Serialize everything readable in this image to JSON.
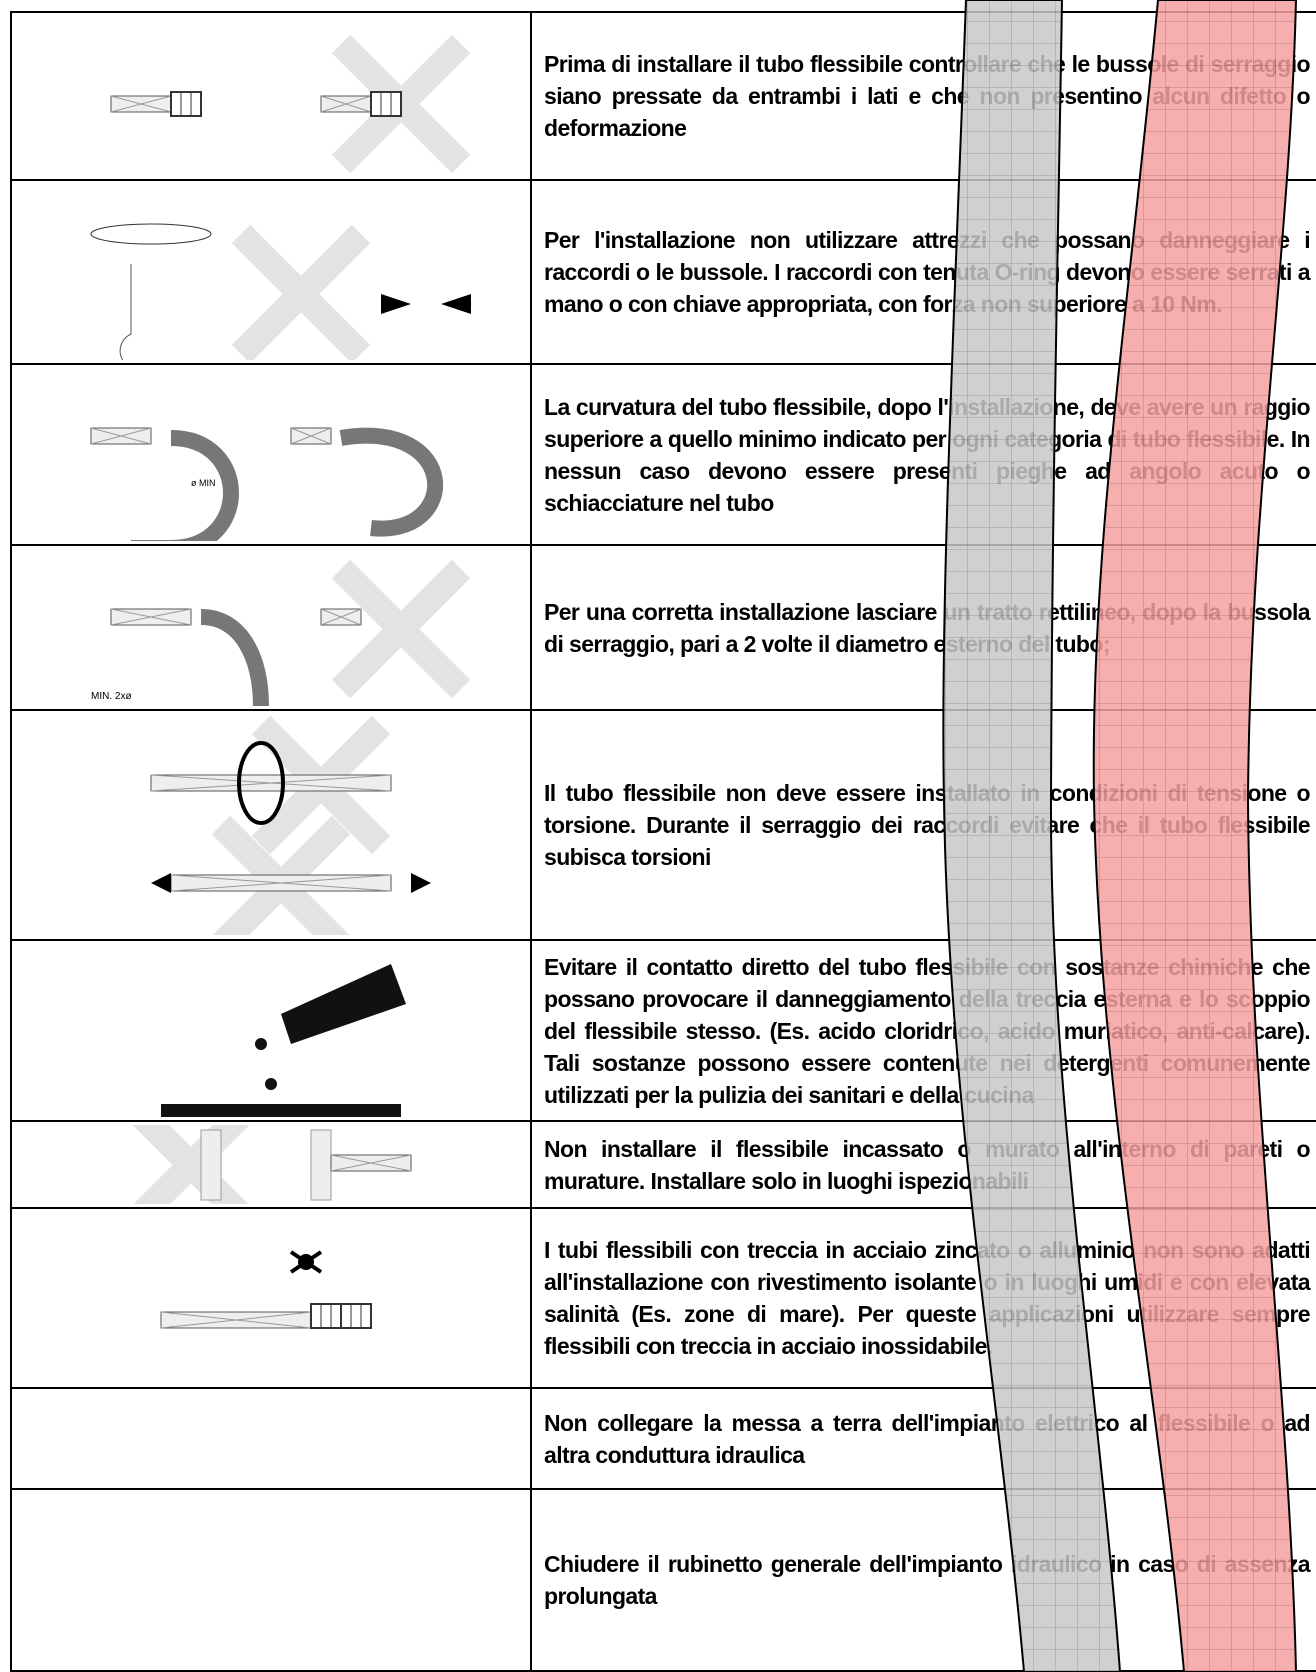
{
  "table": {
    "rows": [
      [
        "Prima di installare il tubo flessibile controllare che le bussole di serraggio siano pressate da entrambi i lati e che non presentino alcun difetto o deformazione"
      ],
      [
        "Per l'installazione non utilizzare attrezzi che possano danneggiare i raccordi o le bussole. I raccordi con tenuta O-ring devono essere serrati a mano o con chiave appropriata, con forza non superiore a 10 Nm."
      ],
      [
        "La curvatura del tubo flessibile, dopo l'installazione, deve avere un raggio superiore a quello minimo indicato per ogni categoria di tubo flessibile. In nessun caso devono essere presenti pieghe ad angolo acuto o schiacciature nel tubo"
      ],
      [
        "Per una corretta installazione lasciare un tratto rettilineo, dopo la bussola di serraggio, pari a 2 volte il diametro esterno del tubo;"
      ],
      [
        "Il tubo flessibile non deve essere installato in condizioni di tensione o torsione. Durante il serraggio dei raccordi evitare che il tubo flessibile subisca torsioni"
      ],
      [
        "Evitare il contatto diretto del tubo flessibile con sostanze chimiche che possano provocare il danneggiamento della treccia esterna e lo scoppio del flessibile stesso. (Es. acido cloridrico, acido muriatico, anti-calcare). Tali sostanze possono essere contenute nei detergenti comunemente utilizzati per la pulizia dei sanitari e della cucina"
      ],
      [
        "Non installare il flessibile incassato o murato all'interno di pareti o murature. Installare solo in luoghi ispezionabili"
      ],
      [
        "I tubi flessibili con treccia in acciaio zincato o alluminio non sono adatti all'installazione con rivestimento isolante o in luoghi umidi e con elevata salinità (Es. zone di mare). Per queste applicazioni utilizzare sempre flessibili con treccia in acciaio inossidabile."
      ],
      [
        "Non collegare la messa a terra dell'impianto elettrico al flessibile o ad altra conduttura idraulica"
      ],
      [
        "Chiudere il rubinetto generale dell'impianto idraulico in caso di assenza prolungata"
      ]
    ],
    "figure_labels": {
      "min_radius": "ø MIN",
      "min_straight": "MIN. 2xø"
    }
  }
}
